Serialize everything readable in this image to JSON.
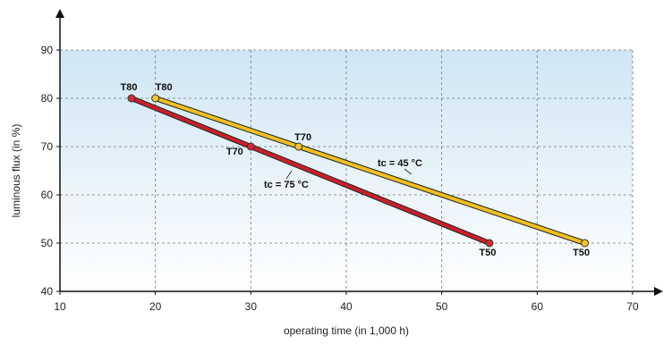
{
  "chart_data": {
    "type": "line",
    "xlabel": "operating time (in 1,000 h)",
    "ylabel": "luminous flux (in %)",
    "xlim": [
      10,
      70
    ],
    "ylim": [
      40,
      90
    ],
    "x_ticks": [
      10,
      20,
      30,
      40,
      50,
      60,
      70
    ],
    "y_ticks": [
      40,
      50,
      60,
      70,
      80,
      90
    ],
    "x_tick_labels": [
      "10",
      "20",
      "30",
      "40",
      "50",
      "60",
      "70"
    ],
    "y_tick_labels": [
      "40",
      "50",
      "60",
      "70",
      "80",
      "90"
    ],
    "grid": true,
    "series": [
      {
        "name": "tc = 45 °C",
        "color": "#f0c020",
        "marker_color": "#f4c430",
        "points": [
          {
            "x": 20,
            "y": 80,
            "label": "T80"
          },
          {
            "x": 35,
            "y": 70,
            "label": "T70"
          },
          {
            "x": 65,
            "y": 50,
            "label": "T50"
          }
        ]
      },
      {
        "name": "tc = 75 °C",
        "color": "#c8202a",
        "marker_color": "#d42a30",
        "points": [
          {
            "x": 17.5,
            "y": 80,
            "label": "T80"
          },
          {
            "x": 30,
            "y": 70,
            "label": "T70"
          },
          {
            "x": 55,
            "y": 50,
            "label": "T50"
          }
        ]
      }
    ]
  }
}
